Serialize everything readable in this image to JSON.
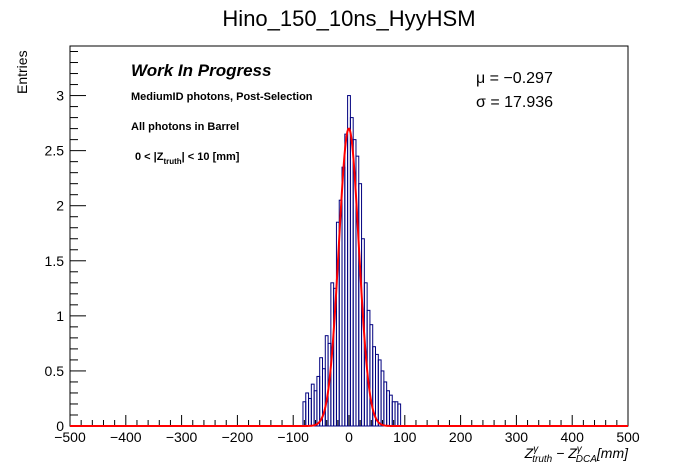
{
  "chart_data": {
    "type": "histogram",
    "title": "Hino_150_10ns_HyyHSM",
    "ylabel": "Entries",
    "xlabel": {
      "base1": "Z",
      "sup1": "γ",
      "sub1": "truth",
      "minus": " − ",
      "base2": "Z",
      "sup2": "γ",
      "sub2": "DCA",
      "unit": "[mm]"
    },
    "xlim": [
      -500,
      500
    ],
    "ylim": [
      0,
      3.45
    ],
    "x_ticks": [
      -500,
      -400,
      -300,
      -200,
      -100,
      0,
      100,
      200,
      300,
      400,
      500
    ],
    "x_tick_labels": [
      "−500",
      "−400",
      "−300",
      "−200",
      "−100",
      "0",
      "100",
      "200",
      "300",
      "400",
      "500"
    ],
    "y_ticks": [
      0,
      0.5,
      1,
      1.5,
      2,
      2.5,
      3
    ],
    "y_tick_labels": [
      "0",
      "0.5",
      "1",
      "1.5",
      "2",
      "2.5",
      "3"
    ],
    "bin_width": 5,
    "histogram": {
      "x": [
        -80,
        -75,
        -70,
        -65,
        -60,
        -55,
        -50,
        -45,
        -40,
        -35,
        -30,
        -25,
        -20,
        -15,
        -10,
        -5,
        0,
        5,
        10,
        15,
        20,
        25,
        30,
        35,
        40,
        45,
        50,
        55,
        60,
        65,
        70,
        75,
        80,
        85,
        90
      ],
      "y": [
        0.22,
        0.3,
        0.25,
        0.38,
        0.32,
        0.45,
        0.62,
        0.52,
        0.82,
        0.75,
        1.3,
        1.25,
        1.85,
        2.05,
        2.35,
        2.65,
        3.0,
        2.8,
        2.6,
        2.45,
        2.2,
        1.7,
        1.3,
        1.05,
        0.92,
        0.72,
        0.65,
        0.6,
        0.5,
        0.4,
        0.32,
        0.28,
        0.22,
        0.22,
        0.2
      ]
    },
    "fit": {
      "mean": -0.297,
      "sigma": 17.936,
      "peak": 2.7
    },
    "colors": {
      "histogram": "#00007f",
      "fit": "#ff0000"
    }
  },
  "annotations": {
    "work_in_progress": "Work In Progress",
    "selection": "MediumID photons, Post-Selection",
    "region": "All photons in Barrel",
    "cut_prefix": "0 < |Z",
    "cut_sub": "truth",
    "cut_suffix": "| < 10 [mm]",
    "mu": "μ = −0.297",
    "sigma": "σ = 17.936"
  }
}
